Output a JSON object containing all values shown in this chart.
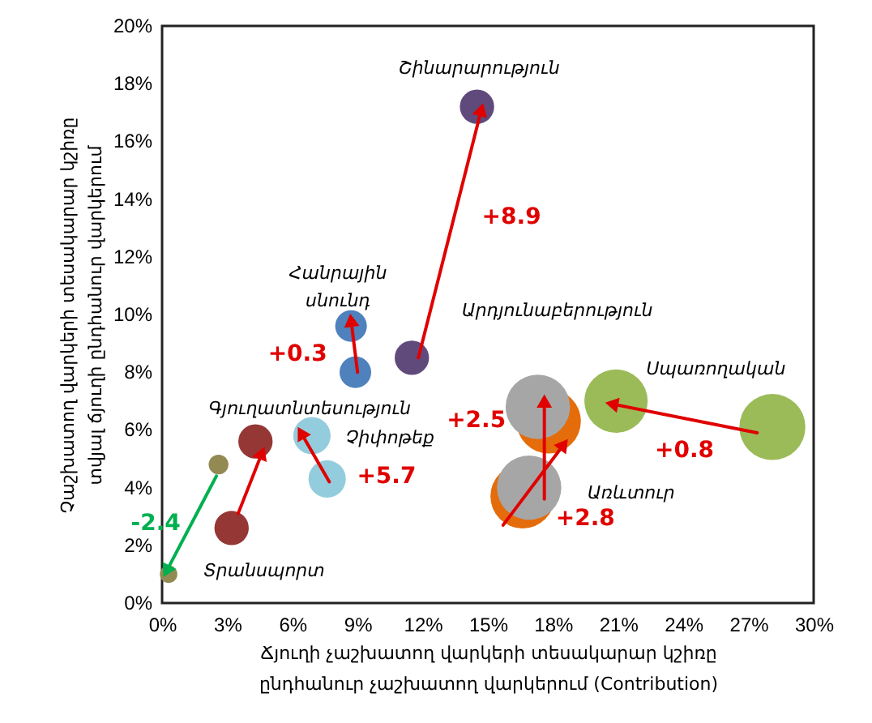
{
  "chart_data": {
    "type": "bubble",
    "xlabel": "Ճյուղի չաշխատող վարկերի տեսակարար կշիռը\nընդհանուր չաշխատող վարկերում (Contribution)",
    "ylabel": "Չաշխատող վարկերի տեսակարար կշիռը\nտվյալ ճյուղի ընդհանուր վարկերում",
    "xlim": [
      0,
      30
    ],
    "xticks": [
      {
        "value": 0,
        "label": "0%"
      },
      {
        "value": 3,
        "label": "3%"
      },
      {
        "value": 6,
        "label": "6%"
      },
      {
        "value": 9,
        "label": "9%"
      },
      {
        "value": 12,
        "label": "12%"
      },
      {
        "value": 15,
        "label": "15%"
      },
      {
        "value": 18,
        "label": "18%"
      },
      {
        "value": 21,
        "label": "21%"
      },
      {
        "value": 24,
        "label": "24%"
      },
      {
        "value": 27,
        "label": "27%"
      },
      {
        "value": 30,
        "label": "30%"
      }
    ],
    "ylim": [
      0,
      20
    ],
    "yticks": [
      {
        "value": 0,
        "label": "0%"
      },
      {
        "value": 2,
        "label": "2%"
      },
      {
        "value": 4,
        "label": "4%"
      },
      {
        "value": 6,
        "label": "6%"
      },
      {
        "value": 8,
        "label": "8%"
      },
      {
        "value": 10,
        "label": "10%"
      },
      {
        "value": 12,
        "label": "12%"
      },
      {
        "value": 14,
        "label": "14%"
      },
      {
        "value": 16,
        "label": "16%"
      },
      {
        "value": 18,
        "label": "18%"
      },
      {
        "value": 20,
        "label": "20%"
      }
    ],
    "grid": false,
    "annotations": [
      "Շինարարություն",
      "Հանրային\nսնունդ",
      "Արդյունաբերություն",
      "Սպառողական",
      "Գյուղատնտեսություն",
      "Չիփոթեք",
      "Առևտուր",
      "Տրանսպորտ",
      {
        "text": "+8.9",
        "x": 13.25,
        "y": 12.8
      },
      {
        "text": "+0.3",
        "x": 8.85,
        "y": 8.9
      },
      {
        "text": "+5.7",
        "x": 7.05,
        "y": 5.05
      },
      {
        "text": "+2.5",
        "x": 17.6,
        "y": 5.3
      },
      {
        "text": "+2.8",
        "x": 17.1,
        "y": 4.1
      },
      {
        "text": "+0.8",
        "x": 24.05,
        "y": 6.4
      },
      {
        "text": "-2.4",
        "x": 1.35,
        "y": 2.75
      }
    ],
    "series": [
      {
        "color": "#604a7b",
        "x": [
          11.5,
          14.5
        ],
        "values": [
          8.5,
          17.2
        ],
        "sizes": [
          0.27,
          0.27
        ]
      },
      {
        "color": "#4f81bd",
        "x": [
          8.9,
          8.7
        ],
        "values": [
          8.0,
          9.6
        ],
        "sizes": [
          0.23,
          0.23
        ]
      },
      {
        "color": "#953735",
        "x": [
          3.2,
          4.3
        ],
        "values": [
          2.6,
          5.6
        ],
        "sizes": [
          0.27,
          0.27
        ]
      },
      {
        "color": "#93cddd",
        "x": [
          7.6,
          6.9
        ],
        "values": [
          4.3,
          5.8
        ],
        "sizes": [
          0.32,
          0.32
        ]
      },
      {
        "color": "#938953",
        "x": [
          2.6,
          0.3
        ],
        "values": [
          4.8,
          1.0
        ],
        "sizes": [
          0.09,
          0.07
        ]
      },
      {
        "color": "#e46c0a",
        "x": [
          16.6,
          17.8
        ],
        "values": [
          3.7,
          6.3
        ],
        "sizes": [
          0.95,
          0.95
        ]
      },
      {
        "color": "#a6a6a6",
        "x": [
          16.9,
          17.3
        ],
        "values": [
          4.0,
          6.8
        ],
        "sizes": [
          0.95,
          0.95
        ]
      },
      {
        "color": "#9bbb59",
        "x": [
          28.1,
          20.9
        ],
        "values": [
          6.1,
          7.0
        ],
        "sizes": [
          1,
          0.92
        ]
      },
      {
        "type": "line",
        "color": "#e00000",
        "x": [
          11.8,
          14.7
        ],
        "values": [
          8.5,
          17.1
        ]
      },
      {
        "type": "line",
        "color": "#e00000",
        "x": [
          9.0,
          8.7
        ],
        "values": [
          8.0,
          9.8
        ]
      },
      {
        "type": "line",
        "color": "#e00000",
        "x": [
          7.7,
          6.4
        ],
        "values": [
          4.2,
          5.9
        ]
      },
      {
        "type": "line",
        "color": "#e00000",
        "x": [
          17.6,
          17.6
        ],
        "values": [
          3.6,
          7.0
        ]
      },
      {
        "type": "line",
        "color": "#e00000",
        "x": [
          15.7,
          18.5
        ],
        "values": [
          2.7,
          5.5
        ]
      },
      {
        "type": "line",
        "color": "#e00000",
        "x": [
          27.4,
          20.7
        ],
        "values": [
          5.9,
          6.9
        ]
      },
      {
        "type": "line",
        "color": "#00b050",
        "x": [
          2.5,
          0.2
        ],
        "values": [
          4.4,
          1.1
        ]
      },
      {
        "type": "line",
        "color": "#e00000",
        "x": [
          3.5,
          4.6
        ],
        "values": [
          3.1,
          5.2
        ]
      }
    ]
  }
}
